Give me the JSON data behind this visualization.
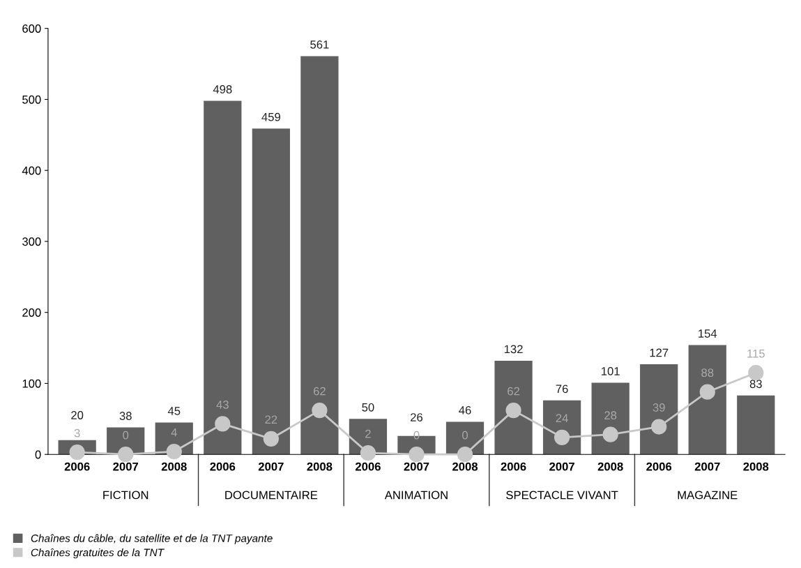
{
  "chart_data": {
    "type": "bar",
    "categories": [
      "2006",
      "2007",
      "2008",
      "2006",
      "2007",
      "2008",
      "2006",
      "2007",
      "2008",
      "2006",
      "2007",
      "2008",
      "2006",
      "2007",
      "2008"
    ],
    "series": [
      {
        "name": "Chaînes du câble, du satellite et de la TNT payante",
        "color": "#606060",
        "values": [
          20,
          38,
          45,
          498,
          459,
          561,
          50,
          26,
          46,
          132,
          76,
          101,
          127,
          154,
          83
        ]
      },
      {
        "name": "Chaînes gratuites de la TNT",
        "type": "line",
        "color": "#c8c8c8",
        "marker": "circle",
        "values": [
          3,
          0,
          4,
          43,
          22,
          62,
          2,
          0,
          0,
          62,
          24,
          28,
          39,
          88,
          115
        ]
      }
    ],
    "annotations": [
      "FICTION",
      "DOCUMENTAIRE",
      "ANIMATION",
      "SPECTACLE VIVANT",
      "MAGAZINE"
    ],
    "ylim": [
      0,
      600
    ],
    "yticks": [
      0,
      100,
      200,
      300,
      400,
      500,
      600
    ],
    "data_labels": true,
    "grid": false,
    "legend": "bottom left"
  }
}
